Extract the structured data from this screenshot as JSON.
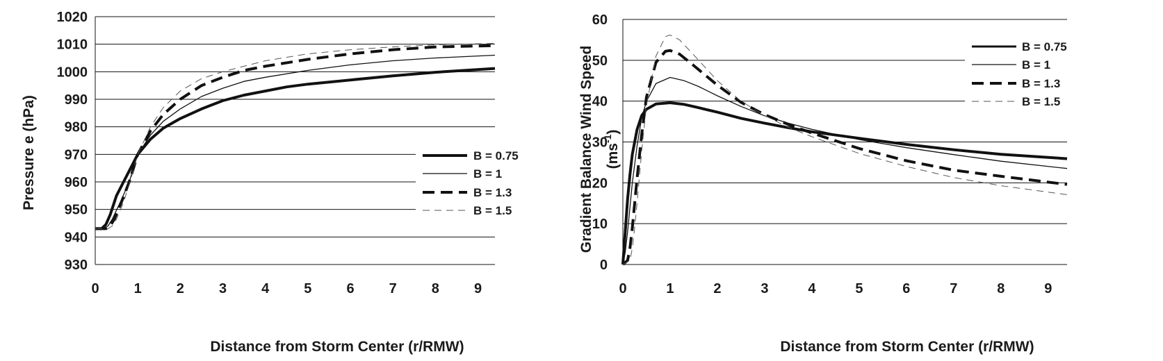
{
  "chart_data": [
    {
      "type": "line",
      "xlabel": "Distance from Storm Center (r/RMW)",
      "ylabel": "Pressure e (hPa)",
      "xlim": [
        0,
        9.4
      ],
      "ylim": [
        930,
        1020
      ],
      "xticks": [
        "0",
        "1",
        "2",
        "3",
        "4",
        "5",
        "6",
        "7",
        "8",
        "9"
      ],
      "yticks": [
        "930",
        "940",
        "950",
        "960",
        "970",
        "980",
        "990",
        "1000",
        "1010",
        "1020"
      ],
      "grid": "horizontal",
      "legend_position": "right",
      "series": [
        {
          "name": "B = 0.75",
          "style": "thick-solid",
          "x": [
            0,
            0.15,
            0.25,
            0.35,
            0.5,
            0.7,
            1.0,
            1.3,
            1.6,
            2.0,
            2.5,
            3.0,
            3.5,
            4.0,
            4.5,
            5.0,
            6.0,
            7.0,
            8.0,
            9.4
          ],
          "y": [
            943,
            943,
            944.5,
            948,
            955,
            961,
            970,
            975.5,
            979.5,
            983,
            986.5,
            989.5,
            991.5,
            993,
            994.5,
            995.5,
            997,
            998.5,
            999.8,
            1001.2
          ]
        },
        {
          "name": "B = 1",
          "style": "thin-solid",
          "x": [
            0,
            0.2,
            0.3,
            0.4,
            0.6,
            0.8,
            1.0,
            1.3,
            1.6,
            2.0,
            2.5,
            3.0,
            3.5,
            4.0,
            5.0,
            6.0,
            7.0,
            8.0,
            9.4
          ],
          "y": [
            943,
            943,
            944,
            946.5,
            953,
            960,
            970,
            977,
            982,
            986.5,
            991,
            994,
            996.5,
            998,
            1000.5,
            1002.5,
            1004,
            1005,
            1006
          ]
        },
        {
          "name": "B = 1.3",
          "style": "thick-dash",
          "x": [
            0,
            0.25,
            0.35,
            0.45,
            0.6,
            0.8,
            1.0,
            1.3,
            1.6,
            2.0,
            2.5,
            3.0,
            3.5,
            4.0,
            5.0,
            6.0,
            7.0,
            8.0,
            9.4
          ],
          "y": [
            943,
            943,
            944,
            946.5,
            952,
            960,
            970,
            978.5,
            984.5,
            990,
            995,
            998,
            1000.5,
            1002,
            1004.5,
            1006.5,
            1008,
            1009,
            1009.5
          ]
        },
        {
          "name": "B = 1.5",
          "style": "thin-dash",
          "x": [
            0,
            0.3,
            0.4,
            0.5,
            0.65,
            0.8,
            1.0,
            1.3,
            1.6,
            2.0,
            2.5,
            3.0,
            3.5,
            4.0,
            5.0,
            6.0,
            7.0,
            8.0,
            9.4
          ],
          "y": [
            943,
            943,
            944,
            946.5,
            952,
            959,
            970,
            980,
            987,
            993,
            997.5,
            1000,
            1002,
            1004,
            1006.5,
            1008,
            1009,
            1009.8,
            1010.3
          ]
        }
      ]
    },
    {
      "type": "line",
      "xlabel": "Distance from Storm Center (r/RMW)",
      "ylabel": "Gradient Balance Wind Speed",
      "ylabel_unit_main": "(ms",
      "ylabel_unit_sup": "-1",
      "ylabel_unit_close": ")",
      "xlim": [
        0,
        9.4
      ],
      "ylim": [
        0,
        60
      ],
      "xticks": [
        "0",
        "1",
        "2",
        "3",
        "4",
        "5",
        "6",
        "7",
        "8",
        "9"
      ],
      "yticks": [
        "0",
        "10",
        "20",
        "30",
        "40",
        "50",
        "60"
      ],
      "grid": "horizontal",
      "legend_position": "top-right",
      "series": [
        {
          "name": "B = 0.75",
          "style": "thick-solid",
          "x": [
            0,
            0.05,
            0.1,
            0.15,
            0.2,
            0.3,
            0.4,
            0.5,
            0.7,
            1.0,
            1.3,
            1.6,
            2.0,
            2.5,
            3.0,
            3.5,
            4.0,
            5.0,
            6.0,
            7.0,
            8.0,
            9.4
          ],
          "y": [
            0,
            8,
            16,
            22,
            27,
            33,
            36.5,
            38,
            39.3,
            39.6,
            39.2,
            38.4,
            37.3,
            35.8,
            34.6,
            33.5,
            32.5,
            30.9,
            29.4,
            28.1,
            27,
            25.9
          ]
        },
        {
          "name": "B = 1",
          "style": "thin-solid",
          "x": [
            0,
            0.05,
            0.1,
            0.15,
            0.2,
            0.3,
            0.4,
            0.5,
            0.7,
            1.0,
            1.3,
            1.6,
            2.0,
            2.5,
            3.0,
            3.5,
            4.0,
            5.0,
            6.0,
            7.0,
            8.0,
            9.4
          ],
          "y": [
            0,
            3,
            8,
            14,
            20,
            29,
            36,
            40,
            44.3,
            45.8,
            45,
            43.6,
            41.3,
            38.7,
            36.4,
            34.6,
            33.1,
            30.6,
            28.6,
            26.9,
            25.3,
            23.5
          ]
        },
        {
          "name": "B = 1.3",
          "style": "thick-dash",
          "x": [
            0,
            0.1,
            0.15,
            0.2,
            0.25,
            0.3,
            0.4,
            0.5,
            0.7,
            0.9,
            1.0,
            1.2,
            1.5,
            2.0,
            2.5,
            3.0,
            3.5,
            4.0,
            5.0,
            6.0,
            7.0,
            8.0,
            9.4
          ],
          "y": [
            0,
            1,
            4,
            9,
            15,
            21,
            32,
            41,
            49.5,
            52.2,
            52.4,
            51.5,
            48.7,
            43.9,
            39.7,
            36.7,
            34.3,
            32.2,
            28.4,
            25.4,
            23.1,
            21.6,
            19.6
          ]
        },
        {
          "name": "B = 1.5",
          "style": "thin-dash",
          "x": [
            0,
            0.15,
            0.2,
            0.25,
            0.3,
            0.4,
            0.5,
            0.7,
            0.9,
            1.0,
            1.2,
            1.5,
            2.0,
            2.5,
            3.0,
            3.5,
            4.0,
            5.0,
            6.0,
            7.0,
            8.0,
            9.4
          ],
          "y": [
            0,
            1,
            4,
            9,
            15,
            28,
            39,
            51,
            55.8,
            56.2,
            55,
            51.3,
            45,
            40,
            36.5,
            33.6,
            31.3,
            27.2,
            24,
            21.3,
            19.3,
            17.1
          ]
        }
      ]
    }
  ]
}
